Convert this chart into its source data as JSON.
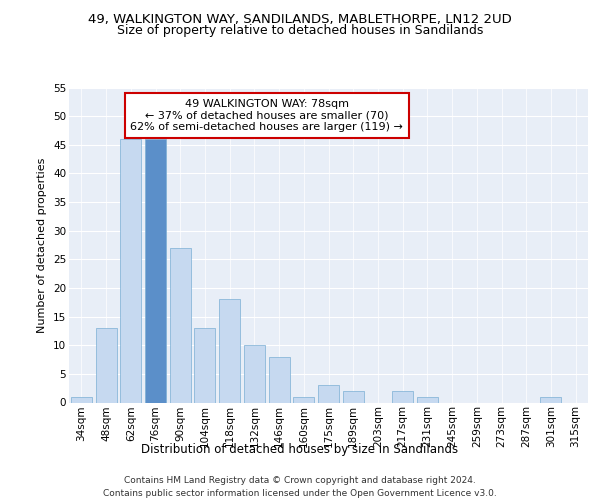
{
  "title1": "49, WALKINGTON WAY, SANDILANDS, MABLETHORPE, LN12 2UD",
  "title2": "Size of property relative to detached houses in Sandilands",
  "xlabel": "Distribution of detached houses by size in Sandilands",
  "ylabel": "Number of detached properties",
  "bar_labels": [
    "34sqm",
    "48sqm",
    "62sqm",
    "76sqm",
    "90sqm",
    "104sqm",
    "118sqm",
    "132sqm",
    "146sqm",
    "160sqm",
    "175sqm",
    "189sqm",
    "203sqm",
    "217sqm",
    "231sqm",
    "245sqm",
    "259sqm",
    "273sqm",
    "287sqm",
    "301sqm",
    "315sqm"
  ],
  "bar_values": [
    1,
    13,
    46,
    46,
    27,
    13,
    18,
    10,
    8,
    1,
    3,
    2,
    0,
    2,
    1,
    0,
    0,
    0,
    0,
    1,
    0
  ],
  "bar_color": "#c6d9f0",
  "bar_edge_color": "#7bafd4",
  "highlight_bar_index": 3,
  "highlight_bar_color": "#5b8fc9",
  "annotation_text": "49 WALKINGTON WAY: 78sqm\n← 37% of detached houses are smaller (70)\n62% of semi-detached houses are larger (119) →",
  "annotation_box_color": "#ffffff",
  "annotation_box_edge": "#cc0000",
  "ylim": [
    0,
    55
  ],
  "yticks": [
    0,
    5,
    10,
    15,
    20,
    25,
    30,
    35,
    40,
    45,
    50,
    55
  ],
  "bg_color": "#e8eef7",
  "grid_color": "#ffffff",
  "footer_line1": "Contains HM Land Registry data © Crown copyright and database right 2024.",
  "footer_line2": "Contains public sector information licensed under the Open Government Licence v3.0.",
  "title1_fontsize": 9.5,
  "title2_fontsize": 9,
  "xlabel_fontsize": 8.5,
  "ylabel_fontsize": 8,
  "tick_fontsize": 7.5,
  "annotation_fontsize": 8,
  "footer_fontsize": 6.5
}
